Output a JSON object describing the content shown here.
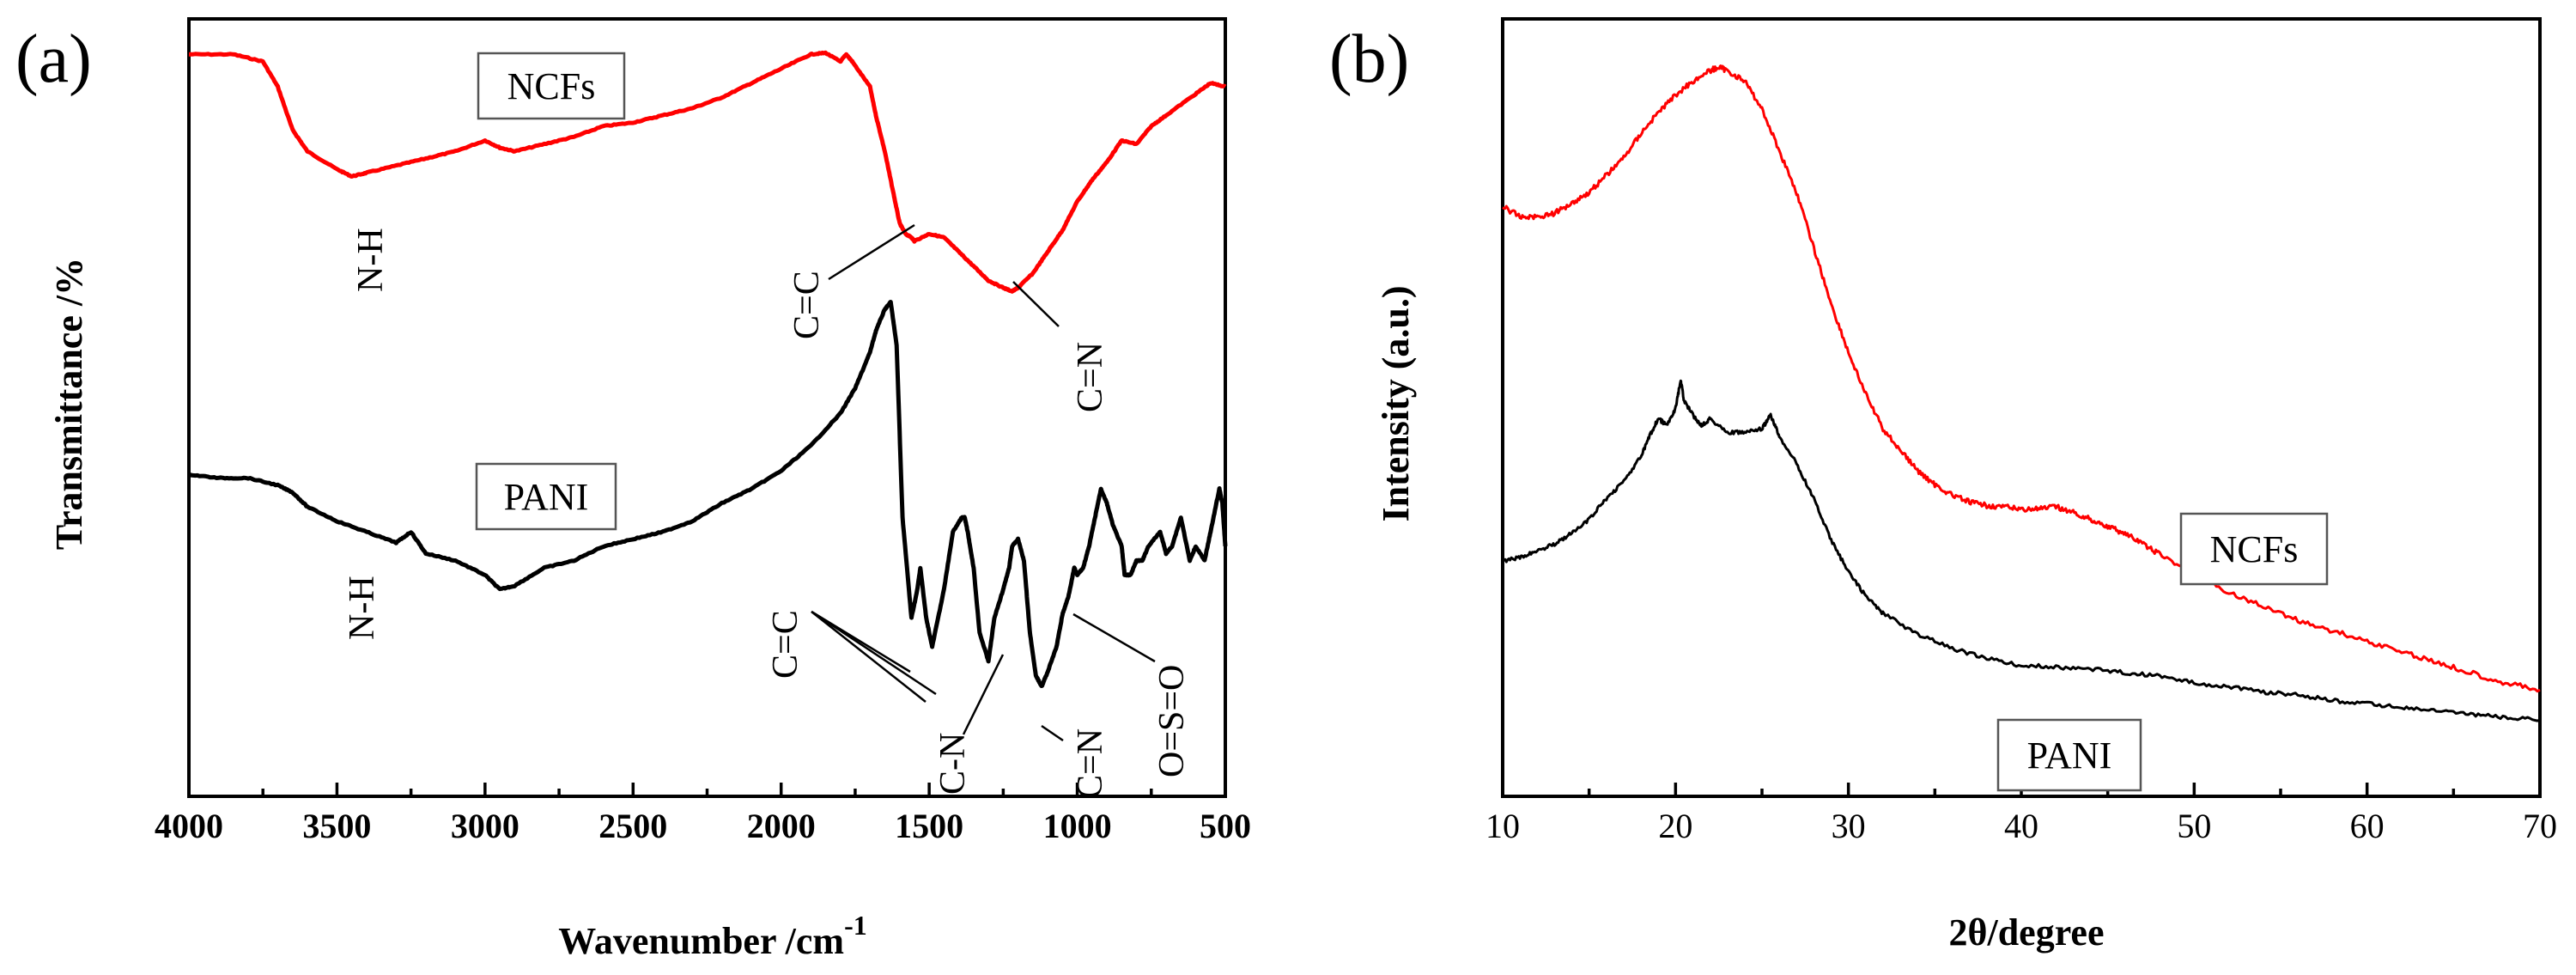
{
  "chart_data": [
    {
      "type": "line",
      "panel_label": "(a)",
      "title": "",
      "xlabel": "Wavenumber /cm",
      "xlabel_sup": "-1",
      "ylabel": "Transmittance /%",
      "xlim": [
        4000,
        500
      ],
      "ylim": [
        0,
        100
      ],
      "xticks": [
        4000,
        3500,
        3000,
        2500,
        2000,
        1500,
        1000,
        500
      ],
      "series": [
        {
          "name": "NCFs",
          "color": "#ff0000",
          "x": [
            4000,
            3850,
            3750,
            3700,
            3650,
            3600,
            3500,
            3450,
            3400,
            3300,
            3200,
            3100,
            3000,
            2950,
            2900,
            2800,
            2700,
            2600,
            2500,
            2400,
            2300,
            2200,
            2100,
            2000,
            1900,
            1850,
            1800,
            1780,
            1760,
            1700,
            1680,
            1650,
            1620,
            1600,
            1580,
            1560,
            1550,
            1500,
            1450,
            1400,
            1350,
            1300,
            1250,
            1220,
            1200,
            1150,
            1100,
            1050,
            1000,
            950,
            900,
            850,
            800,
            750,
            700,
            600,
            550,
            500
          ],
          "y": [
            96.5,
            96.5,
            95.5,
            92,
            86,
            83,
            80.5,
            79.5,
            80,
            81,
            82,
            83,
            84.5,
            83.5,
            83,
            84,
            85,
            86.5,
            87,
            88,
            89,
            90.5,
            92.5,
            94.5,
            96.5,
            96.7,
            95.5,
            96.5,
            95.5,
            92,
            88,
            83,
            77,
            73,
            71.5,
            71,
            70.5,
            71.5,
            71,
            69,
            67,
            65,
            64,
            63.5,
            64,
            66,
            69,
            72,
            76,
            79,
            81.5,
            84.5,
            84,
            86.5,
            88,
            91,
            92.5,
            92
          ]
        },
        {
          "name": "PANI",
          "color": "#000000",
          "x": [
            4000,
            3900,
            3800,
            3700,
            3650,
            3600,
            3500,
            3400,
            3300,
            3250,
            3200,
            3100,
            3000,
            2950,
            2900,
            2800,
            2700,
            2600,
            2500,
            2400,
            2300,
            2200,
            2100,
            2000,
            1900,
            1800,
            1750,
            1700,
            1680,
            1650,
            1630,
            1610,
            1590,
            1560,
            1540,
            1530,
            1510,
            1490,
            1450,
            1420,
            1390,
            1380,
            1370,
            1350,
            1330,
            1300,
            1280,
            1250,
            1230,
            1220,
            1200,
            1180,
            1160,
            1140,
            1120,
            1100,
            1070,
            1050,
            1030,
            1010,
            1000,
            980,
            960,
            940,
            920,
            900,
            880,
            850,
            840,
            820,
            800,
            780,
            760,
            720,
            700,
            680,
            650,
            620,
            600,
            570,
            550,
            520,
            510,
            500
          ],
          "y": [
            38,
            37.5,
            37.5,
            36.5,
            35.5,
            33.5,
            31.5,
            30,
            28.5,
            30,
            27,
            26,
            24,
            22,
            22.5,
            25,
            26,
            28,
            29,
            30,
            31.5,
            34,
            36,
            38.5,
            42,
            46.5,
            50,
            55,
            58,
            61,
            62,
            56,
            32,
            18,
            22,
            25,
            18,
            14,
            22,
            30,
            32,
            32,
            30,
            25,
            16,
            12,
            18,
            22,
            25,
            28,
            29,
            26,
            16,
            10,
            8.5,
            10.5,
            14,
            18.5,
            21,
            25,
            24,
            25,
            28,
            32,
            36,
            34,
            31,
            28,
            24,
            24,
            26,
            26,
            28,
            30,
            27,
            28,
            32,
            26,
            28,
            26,
            30,
            36,
            34,
            28
          ]
        }
      ],
      "annotations_left": [
        "N-H",
        "N-H"
      ],
      "annotations_right": [
        "C=C",
        "C=N",
        "C=C",
        "C-N",
        "C=N",
        "O=S=O"
      ],
      "legend": [
        "NCFs",
        "PANI"
      ]
    },
    {
      "type": "line",
      "panel_label": "(b)",
      "title": "",
      "xlabel": "2θ/degree",
      "ylabel": "Intensity (a.u.)",
      "xlim": [
        10,
        70
      ],
      "ylim": [
        0,
        100
      ],
      "xticks": [
        10,
        20,
        30,
        40,
        50,
        60,
        70
      ],
      "series": [
        {
          "name": "NCFs",
          "color": "#ff0000",
          "x": [
            10,
            11,
            12,
            13,
            14,
            15,
            16,
            17,
            18,
            19,
            20,
            21,
            22,
            22.5,
            23,
            24,
            25,
            26,
            27,
            28,
            29,
            30,
            31,
            32,
            33,
            34,
            35,
            36,
            37,
            38,
            39,
            40,
            41,
            42,
            43,
            44,
            45,
            46,
            47,
            48,
            50,
            52,
            54,
            56,
            58,
            60,
            62,
            64,
            66,
            68,
            70
          ],
          "y": [
            78,
            76.5,
            76.5,
            77,
            78.5,
            80,
            82.5,
            85,
            88.5,
            91.5,
            94,
            96,
            97.5,
            98,
            97.5,
            96,
            92,
            86,
            80,
            72,
            64,
            57,
            51,
            46,
            43,
            40,
            38,
            36.5,
            35.5,
            35,
            34.8,
            34.5,
            34.5,
            34.8,
            34,
            33,
            32,
            31,
            29.5,
            28,
            25,
            22.5,
            20.5,
            18.5,
            17,
            15.5,
            14,
            12.5,
            11,
            9.5,
            8.5
          ]
        },
        {
          "name": "PANI",
          "color": "#000000",
          "x": [
            10,
            11,
            12,
            13,
            14,
            15,
            16,
            17,
            18,
            18.5,
            19,
            19.5,
            20,
            20.3,
            20.5,
            21,
            21.5,
            22,
            23,
            24,
            25,
            25.5,
            26,
            27,
            28,
            29,
            30,
            31,
            32,
            34,
            36,
            38,
            40,
            42,
            44,
            46,
            48,
            50,
            52,
            54,
            56,
            58,
            60,
            62,
            64,
            66,
            68,
            70
          ],
          "y": [
            27,
            27.5,
            28.5,
            29.5,
            31,
            33,
            36,
            38.5,
            42,
            45,
            47.5,
            46.5,
            49,
            53,
            50,
            48,
            46.5,
            47.5,
            45.5,
            45.5,
            46,
            48,
            45,
            41,
            36,
            30,
            25.5,
            22,
            19.5,
            16.5,
            14.5,
            13,
            12,
            11.8,
            11.5,
            11,
            10.5,
            9.5,
            9,
            8.2,
            7.8,
            7,
            6.5,
            6,
            5.5,
            5,
            4.5,
            4.2
          ]
        }
      ],
      "legend": [
        "NCFs",
        "PANI"
      ]
    }
  ]
}
